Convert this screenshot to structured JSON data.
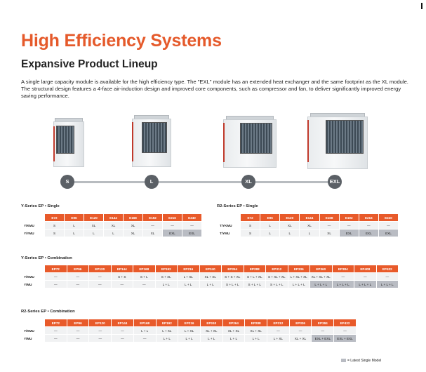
{
  "title": "High Efficiency Systems",
  "subtitle": "Expansive Product Lineup",
  "intro": "A single large capacity module is available for the high efficiency type. The \"EXL\" module has an extended heat exchanger and the same footprint as the XL module. The structural design features a 4-face air-induction design and improved core components, such as compressor and fan, to deliver significantly improved energy saving performance.",
  "modules": [
    "S",
    "L",
    "XL",
    "EXL"
  ],
  "accent_color": "#e85a2a",
  "latest_color": "#b9bcc3",
  "tables": {
    "y_single": {
      "title": "Y-Series EP • Single",
      "columns": [
        "E72",
        "E96",
        "E120",
        "E144",
        "E168",
        "E192",
        "E216",
        "E240"
      ],
      "rows": [
        {
          "label": "Y/KMU",
          "cells": [
            "S",
            "L",
            "XL",
            "XL",
            "XL",
            "—",
            "—",
            "—"
          ]
        },
        {
          "label": "Y/YMU",
          "cells": [
            "S",
            "L",
            "L",
            "L",
            "XL",
            "XL",
            "EXL",
            "EXL"
          ]
        }
      ]
    },
    "r2_single": {
      "title": "R2-Series EP • Single",
      "columns": [
        "E72",
        "E96",
        "E120",
        "E144",
        "E168",
        "E192",
        "E216",
        "E240"
      ],
      "rows": [
        {
          "label": "T/YKMU",
          "cells": [
            "S",
            "L",
            "XL",
            "XL",
            "—",
            "—",
            "—",
            "—"
          ]
        },
        {
          "label": "T/YMU",
          "cells": [
            "S",
            "L",
            "L",
            "L",
            "XL",
            "EXL",
            "EXL",
            "EXL"
          ]
        }
      ]
    },
    "y_combo": {
      "title": "Y-Series EP • Combination",
      "columns": [
        "EP72",
        "EP96",
        "EP120",
        "EP144",
        "EP168",
        "EP192",
        "EP216",
        "EP240",
        "EP264",
        "EP288",
        "EP312",
        "EP336",
        "EP360",
        "EP384",
        "EP408",
        "EP432"
      ],
      "rows": [
        {
          "label": "Y/KMU",
          "cells": [
            "—",
            "—",
            "—",
            "S + S",
            "S + L",
            "S + XL",
            "L + XL",
            "XL + XL",
            "S + S + XL",
            "S + L + XL",
            "S + XL + XL",
            "L + XL + XL",
            "XL + XL + XL",
            "—",
            "—",
            "—"
          ]
        },
        {
          "label": "Y/MU",
          "cells": [
            "—",
            "—",
            "—",
            "—",
            "—",
            "L + L",
            "L + L",
            "L + L",
            "S + L + L",
            "S + L + L",
            "S + L + L",
            "L + L + L",
            "L + L + L",
            "L + L + L",
            "L + L + L",
            "L + L + L"
          ]
        }
      ]
    },
    "r2_combo": {
      "title": "R2-Series EP • Combination",
      "columns": [
        "EP72",
        "EP96",
        "EP120",
        "EP144",
        "EP168",
        "EP192",
        "EP216",
        "EP240",
        "EP264",
        "EP288",
        "EP312",
        "EP336",
        "EP384",
        "EP432"
      ],
      "rows": [
        {
          "label": "Y/KMU",
          "cells": [
            "—",
            "—",
            "—",
            "—",
            "L + L",
            "L + XL",
            "L + XL",
            "XL + XL",
            "XL + XL",
            "XL + XL",
            "—",
            "—",
            "—",
            "—"
          ]
        },
        {
          "label": "Y/MU",
          "cells": [
            "—",
            "—",
            "—",
            "—",
            "—",
            "L + L",
            "L + L",
            "L + L",
            "L + L",
            "L + L",
            "L + XL",
            "XL + XL",
            "EXL + EXL",
            "EXL + EXL"
          ]
        }
      ]
    }
  },
  "legend": "= Latest Single Model"
}
